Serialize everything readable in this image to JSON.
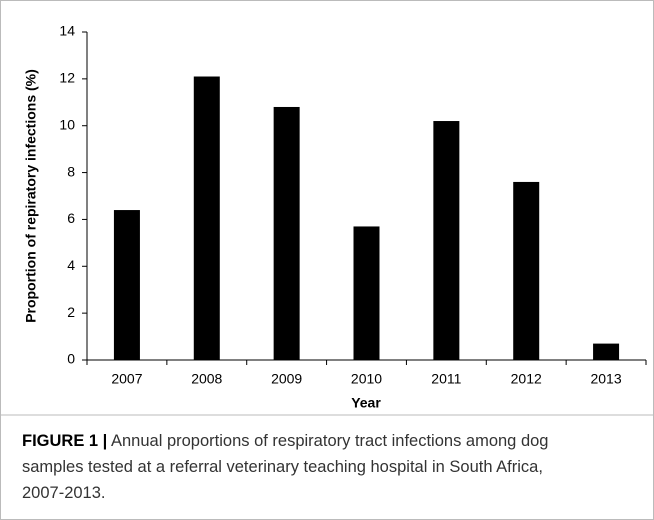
{
  "chart_data": {
    "type": "bar",
    "y_label": "Proportion of repiratory infections (%)",
    "x_label": "Year",
    "categories": [
      "2007",
      "2008",
      "2009",
      "2010",
      "2011",
      "2012",
      "2013"
    ],
    "values": [
      6.4,
      12.1,
      10.8,
      5.7,
      10.2,
      7.6,
      0.7
    ],
    "color": "#000000",
    "ylim": [
      0,
      14
    ],
    "yticks": [
      0,
      2,
      4,
      6,
      8,
      10,
      12,
      14
    ],
    "grid": false
  },
  "caption_label": "FIGURE 1 |",
  "caption_lines": [
    "Annual proportions of respiratory tract infections among dog",
    "samples tested at a referral veterinary teaching hospital in South Africa,",
    "2007-2013."
  ]
}
